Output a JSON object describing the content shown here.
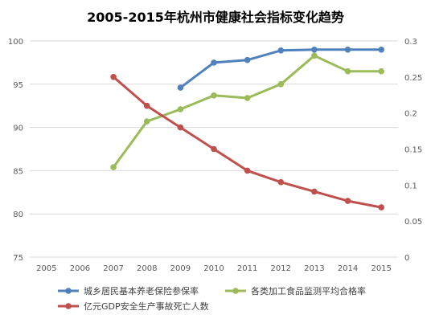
{
  "chart_data": {
    "type": "line",
    "title": "2005-2015年杭州市健康社会指标变化趋势",
    "x": [
      "2005",
      "2006",
      "2007",
      "2008",
      "2009",
      "2010",
      "2011",
      "2012",
      "2013",
      "2014",
      "2015"
    ],
    "y_left": {
      "range": [
        75,
        100
      ],
      "ticks": [
        "75",
        "80",
        "85",
        "90",
        "95",
        "100"
      ]
    },
    "y_right": {
      "range": [
        0,
        0.3
      ],
      "ticks": [
        "0",
        "0.05",
        "0.1",
        "0.15",
        "0.2",
        "0.25",
        "0.3"
      ]
    },
    "grid": "horizontal",
    "legend_position": "bottom",
    "series": [
      {
        "name": "城乡居民基本养老保险参保率",
        "axis": "left",
        "color": "#4f81bd",
        "values": [
          null,
          null,
          null,
          null,
          94.6,
          97.5,
          97.8,
          98.9,
          99.0,
          99.0,
          99.0
        ]
      },
      {
        "name": "各类加工食品监测平均合格率",
        "axis": "left",
        "color": "#9bbb59",
        "values": [
          null,
          null,
          85.4,
          90.7,
          92.1,
          93.7,
          93.4,
          95.0,
          98.3,
          96.5,
          96.5
        ]
      },
      {
        "name": "亿元GDP安全生产事故死亡人数",
        "axis": "right",
        "color": "#c0504d",
        "values": [
          null,
          null,
          0.25,
          0.21,
          0.18,
          0.15,
          0.12,
          0.104,
          0.091,
          0.078,
          0.069
        ]
      }
    ]
  }
}
